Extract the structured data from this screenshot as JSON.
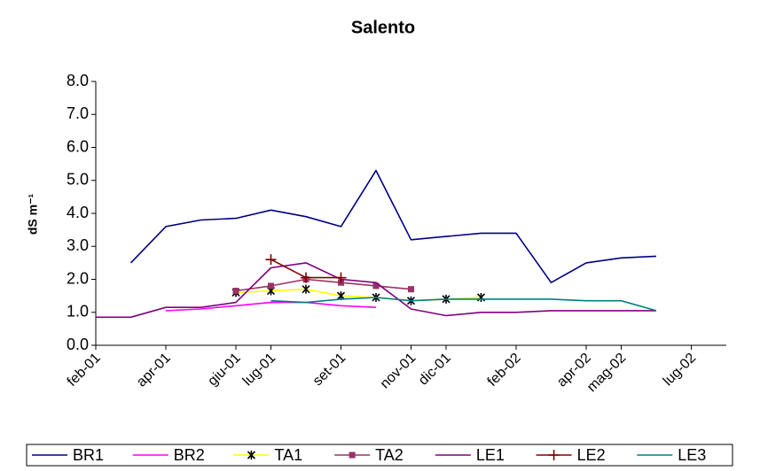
{
  "chart_data": {
    "type": "line",
    "title": "Salento",
    "y_label": "dS m⁻¹",
    "x": [
      "2001-02",
      "2001-03",
      "2001-04",
      "2001-05",
      "2001-06",
      "2001-07",
      "2001-08",
      "2001-09",
      "2001-10",
      "2001-11",
      "2001-12",
      "2002-01",
      "2002-02",
      "2002-03",
      "2002-04",
      "2002-05",
      "2002-06"
    ],
    "xlim": [
      "2001-02",
      "2002-08"
    ],
    "xticks": [
      {
        "value": "2001-02",
        "label": "feb-01"
      },
      {
        "value": "2001-04",
        "label": "apr-01"
      },
      {
        "value": "2001-06",
        "label": "giu-01"
      },
      {
        "value": "2001-07",
        "label": "lug-01"
      },
      {
        "value": "2001-09",
        "label": "set-01"
      },
      {
        "value": "2001-11",
        "label": "nov-01"
      },
      {
        "value": "2001-12",
        "label": "dic-01"
      },
      {
        "value": "2002-02",
        "label": "feb-02"
      },
      {
        "value": "2002-04",
        "label": "apr-02"
      },
      {
        "value": "2002-05",
        "label": "mag-02"
      },
      {
        "value": "2002-07",
        "label": "lug-02"
      }
    ],
    "ylim": [
      0,
      8
    ],
    "yticks": [
      {
        "value": 0,
        "label": "0.0"
      },
      {
        "value": 1,
        "label": "1.0"
      },
      {
        "value": 2,
        "label": "2.0"
      },
      {
        "value": 3,
        "label": "3.0"
      },
      {
        "value": 4,
        "label": "4.0"
      },
      {
        "value": 5,
        "label": "5.0"
      },
      {
        "value": 6,
        "label": "6.0"
      },
      {
        "value": 7,
        "label": "7.0"
      },
      {
        "value": 8,
        "label": "8.0"
      }
    ],
    "grid": false,
    "legend": "bottom",
    "series": [
      {
        "name": "BR1",
        "color": "#000080",
        "values": [
          null,
          2.5,
          3.6,
          3.8,
          3.85,
          4.1,
          3.9,
          3.6,
          5.3,
          3.2,
          3.3,
          3.4,
          3.4,
          1.9,
          2.5,
          2.65,
          2.7
        ]
      },
      {
        "name": "BR2",
        "color": "#ff00ff",
        "values": [
          null,
          null,
          1.05,
          1.1,
          1.2,
          1.3,
          1.3,
          1.2,
          1.15,
          null,
          null,
          null,
          null,
          null,
          null,
          null,
          null
        ]
      },
      {
        "name": "TA1",
        "color": "#ffff00",
        "marker": "star",
        "marker_color": "#000000",
        "values": [
          null,
          null,
          null,
          null,
          1.6,
          1.65,
          1.7,
          1.5,
          1.45,
          1.35,
          1.4,
          1.45,
          null,
          null,
          null,
          null,
          null
        ]
      },
      {
        "name": "TA2",
        "color": "#993366",
        "marker": "square",
        "marker_color": "#993366",
        "values": [
          null,
          null,
          null,
          null,
          1.65,
          1.8,
          2.0,
          1.9,
          1.8,
          1.7,
          null,
          null,
          null,
          null,
          null,
          null,
          null
        ]
      },
      {
        "name": "LE1",
        "color": "#800080",
        "values": [
          0.85,
          0.85,
          1.15,
          1.15,
          1.3,
          2.35,
          2.5,
          2.0,
          1.9,
          1.1,
          0.9,
          1.0,
          1.0,
          1.05,
          1.05,
          1.05,
          1.05
        ]
      },
      {
        "name": "LE2",
        "color": "#800000",
        "marker": "plus",
        "marker_color": "#800000",
        "values": [
          null,
          null,
          null,
          null,
          null,
          2.6,
          2.05,
          2.05,
          null,
          null,
          null,
          null,
          null,
          null,
          null,
          null,
          null
        ]
      },
      {
        "name": "LE3",
        "color": "#008080",
        "values": [
          null,
          null,
          null,
          null,
          null,
          1.35,
          1.3,
          1.4,
          1.45,
          1.35,
          1.4,
          1.4,
          1.4,
          1.4,
          1.35,
          1.35,
          1.05
        ]
      }
    ]
  }
}
